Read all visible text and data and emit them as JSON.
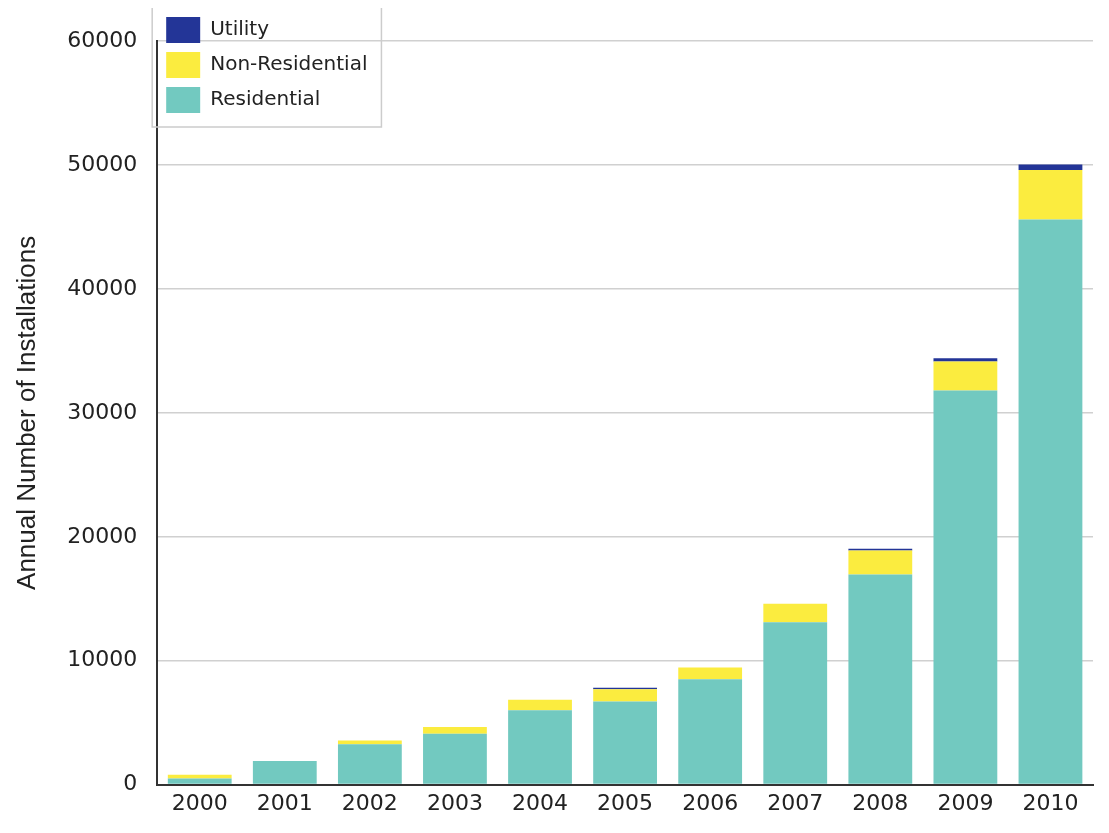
{
  "chart_data": {
    "type": "bar",
    "stacked": true,
    "ylabel": "Annual Number of Installations",
    "categories": [
      "2000",
      "2001",
      "2002",
      "2003",
      "2004",
      "2005",
      "2006",
      "2007",
      "2008",
      "2009",
      "2010"
    ],
    "series": [
      {
        "name": "Residential",
        "color": "#72c9c0",
        "values": [
          500,
          1900,
          3250,
          4100,
          6000,
          6700,
          8500,
          13100,
          16950,
          31800,
          45600
        ]
      },
      {
        "name": "Non-Residential",
        "color": "#fbec3f",
        "values": [
          300,
          null,
          300,
          550,
          850,
          1000,
          950,
          1500,
          1950,
          2350,
          4000
        ]
      },
      {
        "name": "Utility",
        "color": "#233597",
        "values": [
          null,
          null,
          null,
          null,
          null,
          120,
          null,
          null,
          130,
          270,
          450
        ]
      }
    ],
    "ylim": [
      0,
      60000
    ],
    "yticks": [
      0,
      10000,
      20000,
      30000,
      40000,
      50000,
      60000
    ],
    "grid": "y",
    "legend": "top left"
  }
}
